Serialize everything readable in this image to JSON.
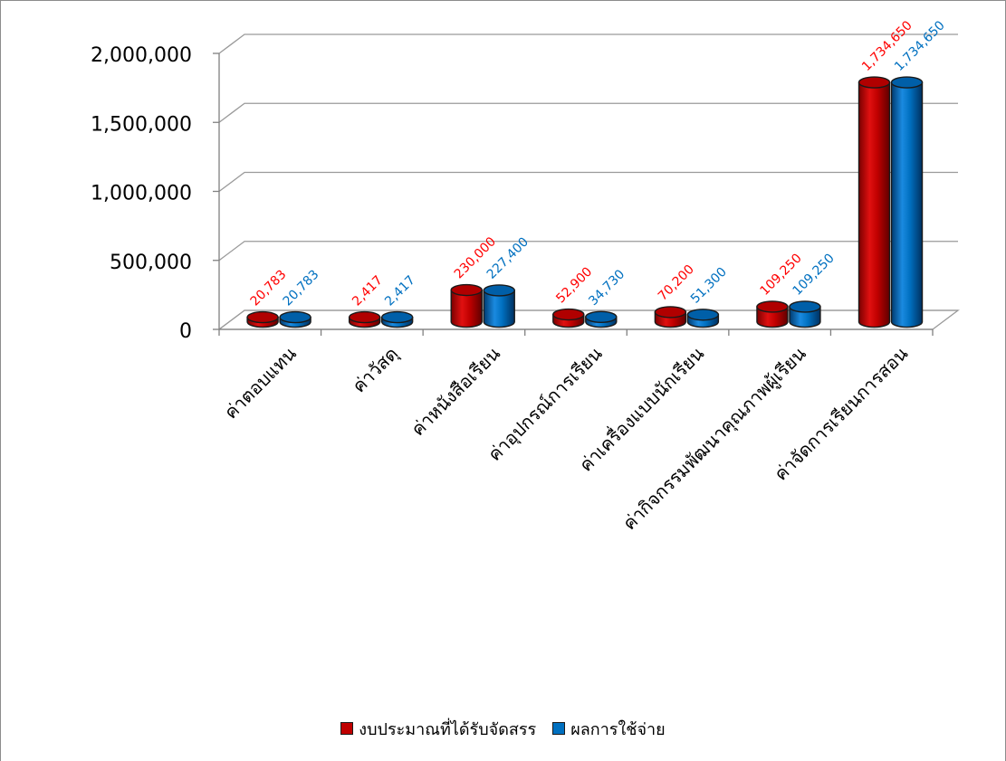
{
  "chart_data": {
    "type": "bar",
    "categories": [
      "ค่าตอบแทน",
      "ค่าวัสดุ",
      "ค่าหนังสือเรียน",
      "ค่าอุปกรณ์การเรียน",
      "ค่าเครื่องแบบนักเรียน",
      "ค่ากิจกรรมพัฒนาคุณภาพผู้เรียน",
      "ค่าจัดการเรียนการสอน"
    ],
    "series": [
      {
        "name": "งบประมาณที่ได้รับจัดสรร",
        "values": [
          20783,
          2417,
          230000,
          52900,
          70200,
          109250,
          1734650
        ],
        "labels": [
          "20,783",
          "2,417",
          "230,000",
          "52,900",
          "70,200",
          "109,250",
          "1,734,650"
        ],
        "color": "#c00000",
        "label_color": "#ff0000"
      },
      {
        "name": "ผลการใช้จ่าย",
        "values": [
          20783,
          2417,
          227400,
          34730,
          51300,
          109250,
          1734650
        ],
        "labels": [
          "20,783",
          "2,417",
          "227,400",
          "34,730",
          "51,300",
          "109,250",
          "1,734,650"
        ],
        "color": "#0070c0",
        "label_color": "#0070c0"
      }
    ],
    "yticks": [
      "0",
      "500,000",
      "1,000,000",
      "1,500,000",
      "2,000,000"
    ],
    "ylim": [
      0,
      2000000
    ],
    "grid": true,
    "legend_position": "bottom",
    "style": "3d-cylinder"
  }
}
